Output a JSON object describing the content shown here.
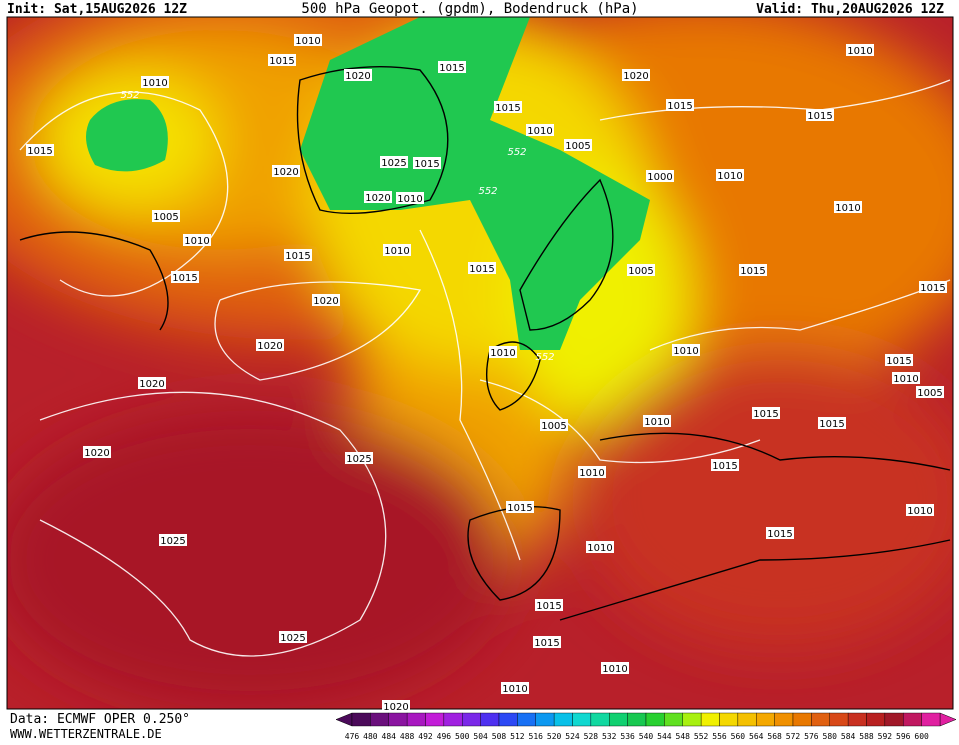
{
  "header": {
    "init": "Init: Sat,15AUG2026 12Z",
    "title": "500 hPa Geopot. (gpdm), Bodendruck (hPa)",
    "valid": "Valid: Thu,20AUG2026 12Z"
  },
  "isobar_labels": [
    "1010",
    "1015",
    "1010",
    "552",
    "1020",
    "1015",
    "1020",
    "1010",
    "1015",
    "1015",
    "1015",
    "1010",
    "1005",
    "552",
    "1015",
    "1025",
    "1015",
    "1020",
    "1000",
    "1010",
    "552",
    "1020",
    "1010",
    "1005",
    "1010",
    "1010",
    "1010",
    "1015",
    "1015",
    "1005",
    "1015",
    "1015",
    "1015",
    "1020",
    "1020",
    "1010",
    "552",
    "1010",
    "1015",
    "1010",
    "1020",
    "1005",
    "1015",
    "1010",
    "1015",
    "1005",
    "1020",
    "1025",
    "1015",
    "1010",
    "1015",
    "1010",
    "1025",
    "1010",
    "1015",
    "1015",
    "1025",
    "1015",
    "1010",
    "1010",
    "1020"
  ],
  "footer": {
    "data": "Data: ECMWF OPER 0.250°",
    "site": "WWW.WETTERZENTRALE.DE"
  },
  "scale": {
    "labels": [
      476,
      480,
      484,
      488,
      492,
      496,
      500,
      504,
      508,
      512,
      516,
      520,
      524,
      528,
      532,
      536,
      540,
      544,
      548,
      552,
      556,
      560,
      564,
      568,
      572,
      576,
      580,
      584,
      588,
      592,
      596,
      600
    ],
    "colors": [
      "#4b0a5a",
      "#6a0f7c",
      "#8a14a0",
      "#a818c0",
      "#c21cd8",
      "#a020e0",
      "#7a28e8",
      "#4e30f0",
      "#2c48f4",
      "#1870f4",
      "#0c98f0",
      "#08c0e8",
      "#10d8d0",
      "#10d8a0",
      "#10d070",
      "#18c850",
      "#28d030",
      "#60e020",
      "#a8f010",
      "#f0f000",
      "#f4d800",
      "#f4c000",
      "#f4a800",
      "#f09000",
      "#e87800",
      "#e06010",
      "#d84818",
      "#c83020",
      "#b82020",
      "#a01828",
      "#c01860",
      "#e020a0"
    ]
  }
}
